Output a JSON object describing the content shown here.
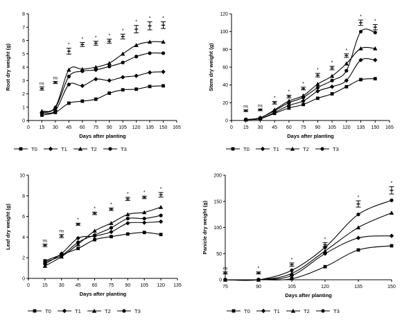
{
  "series_legend": [
    "T0",
    "T1",
    "T2",
    "T3"
  ],
  "series_markers": [
    "square",
    "diamond",
    "triangle",
    "circle"
  ],
  "colors": {
    "line": "#000000",
    "axis": "#000000"
  },
  "chart_data": [
    {
      "type": "line",
      "ylabel": "Root dry weight (g)",
      "xlabel": "Days after planting",
      "x": [
        15,
        30,
        45,
        60,
        75,
        90,
        105,
        120,
        135,
        150
      ],
      "xlim": [
        0,
        165
      ],
      "xticks": [
        "0",
        "15",
        "30",
        "45",
        "60",
        "75",
        "90",
        "105",
        "120",
        "135",
        "150",
        "165"
      ],
      "ylim": [
        0,
        8
      ],
      "yticks": [
        "0",
        "1",
        "2",
        "3",
        "4",
        "5",
        "6",
        "7",
        "8"
      ],
      "series": [
        {
          "name": "T0",
          "values": [
            0.4,
            0.6,
            1.3,
            1.45,
            1.6,
            2.05,
            2.3,
            2.35,
            2.55,
            2.6
          ]
        },
        {
          "name": "T1",
          "values": [
            0.55,
            0.75,
            2.7,
            2.6,
            3.1,
            3.0,
            3.25,
            3.35,
            3.6,
            3.65
          ]
        },
        {
          "name": "T2",
          "values": [
            0.7,
            1.0,
            3.8,
            3.85,
            4.0,
            4.3,
            5.0,
            5.65,
            5.9,
            5.9
          ]
        },
        {
          "name": "T3",
          "values": [
            0.6,
            0.95,
            3.3,
            3.7,
            3.8,
            4.05,
            4.35,
            4.8,
            5.05,
            5.05
          ]
        }
      ],
      "significance": [
        {
          "x": 15,
          "label": "ns",
          "value": 2.4,
          "err": 0.12
        },
        {
          "x": 30,
          "label": "ns",
          "value": 2.85,
          "err": 0.08
        },
        {
          "x": 45,
          "label": "*",
          "value": 5.2,
          "err": 0.22
        },
        {
          "x": 60,
          "label": "*",
          "value": 5.7,
          "err": 0.15
        },
        {
          "x": 75,
          "label": "*",
          "value": 5.8,
          "err": 0.15
        },
        {
          "x": 90,
          "label": "*",
          "value": 5.95,
          "err": 0.15
        },
        {
          "x": 105,
          "label": "*",
          "value": 6.3,
          "err": 0.18
        },
        {
          "x": 120,
          "label": "*",
          "value": 6.85,
          "err": 0.28
        },
        {
          "x": 135,
          "label": "*",
          "value": 7.1,
          "err": 0.3
        },
        {
          "x": 150,
          "label": "*",
          "value": 7.15,
          "err": 0.25
        }
      ]
    },
    {
      "type": "line",
      "ylabel": "Stem dry weight (g)",
      "xlabel": "Days after planting",
      "x": [
        15,
        30,
        45,
        60,
        75,
        90,
        105,
        120,
        135,
        150
      ],
      "xlim": [
        0,
        165
      ],
      "xticks": [
        "0",
        "15",
        "30",
        "45",
        "60",
        "75",
        "90",
        "105",
        "120",
        "135",
        "150",
        "165"
      ],
      "ylim": [
        0,
        120
      ],
      "yticks": [
        "0",
        "20",
        "40",
        "60",
        "80",
        "100",
        "120"
      ],
      "series": [
        {
          "name": "T0",
          "values": [
            1,
            2,
            8,
            14,
            18,
            25,
            30,
            38,
            46,
            47
          ]
        },
        {
          "name": "T1",
          "values": [
            1,
            2,
            9,
            17,
            22,
            33,
            38,
            45,
            68,
            68
          ]
        },
        {
          "name": "T2",
          "values": [
            1,
            3,
            12,
            22,
            28,
            41,
            50,
            64,
            81,
            81
          ]
        },
        {
          "name": "T3",
          "values": [
            1,
            3,
            11,
            20,
            26,
            37,
            45,
            56,
            100,
            99
          ]
        }
      ],
      "significance": [
        {
          "x": 15,
          "label": "ns",
          "value": 11,
          "err": 1
        },
        {
          "x": 30,
          "label": "ns",
          "value": 12,
          "err": 1
        },
        {
          "x": 45,
          "label": "*",
          "value": 20,
          "err": 1.5
        },
        {
          "x": 60,
          "label": "*",
          "value": 27,
          "err": 1.5
        },
        {
          "x": 75,
          "label": "*",
          "value": 36,
          "err": 1.5
        },
        {
          "x": 90,
          "label": "*",
          "value": 51,
          "err": 2
        },
        {
          "x": 105,
          "label": "*",
          "value": 59,
          "err": 2
        },
        {
          "x": 120,
          "label": "*",
          "value": 73,
          "err": 2
        },
        {
          "x": 135,
          "label": "*",
          "value": 110,
          "err": 3
        },
        {
          "x": 150,
          "label": "*",
          "value": 105,
          "err": 3
        }
      ]
    },
    {
      "type": "line",
      "ylabel": "Leaf dry weight (g)",
      "xlabel": "Days after planting",
      "x": [
        15,
        30,
        45,
        60,
        75,
        90,
        105,
        120
      ],
      "xlim": [
        0,
        135
      ],
      "xticks": [
        "0",
        "15",
        "30",
        "45",
        "60",
        "75",
        "90",
        "105",
        "120",
        "135"
      ],
      "ylim": [
        0,
        10
      ],
      "yticks": [
        "0",
        "2",
        "4",
        "6",
        "8",
        "10"
      ],
      "series": [
        {
          "name": "T0",
          "values": [
            1.7,
            2.3,
            2.9,
            3.75,
            4.05,
            4.3,
            4.45,
            4.25
          ]
        },
        {
          "name": "T1",
          "values": [
            1.4,
            2.4,
            3.9,
            4.1,
            4.5,
            5.35,
            5.4,
            5.5
          ]
        },
        {
          "name": "T2",
          "values": [
            1.2,
            2.1,
            3.3,
            4.6,
            5.35,
            6.2,
            6.4,
            6.9
          ]
        },
        {
          "name": "T3",
          "values": [
            1.6,
            2.2,
            3.5,
            4.2,
            4.9,
            5.8,
            5.8,
            6.1
          ]
        }
      ],
      "significance": [
        {
          "x": 15,
          "label": "ns",
          "value": 3.2,
          "err": 0.12
        },
        {
          "x": 30,
          "label": "ns",
          "value": 4.1,
          "err": 0.15
        },
        {
          "x": 45,
          "label": "*",
          "value": 5.25,
          "err": 0.1
        },
        {
          "x": 60,
          "label": "*",
          "value": 6.3,
          "err": 0.12
        },
        {
          "x": 75,
          "label": "*",
          "value": 6.7,
          "err": 0.12
        },
        {
          "x": 90,
          "label": "*",
          "value": 7.7,
          "err": 0.15
        },
        {
          "x": 105,
          "label": "*",
          "value": 7.85,
          "err": 0.12
        },
        {
          "x": 120,
          "label": "*",
          "value": 8.1,
          "err": 0.22
        }
      ]
    },
    {
      "type": "line",
      "ylabel": "Panicle dry weight (g)",
      "xlabel": "Days after planting",
      "x": [
        75,
        90,
        105,
        120,
        135,
        150
      ],
      "xlim": [
        75,
        150
      ],
      "xticks": [
        "75",
        "90",
        "105",
        "120",
        "135",
        "150"
      ],
      "ylim": [
        0,
        200
      ],
      "yticks": [
        "0",
        "50",
        "100",
        "150",
        "200"
      ],
      "series": [
        {
          "name": "T0",
          "values": [
            0,
            0,
            2,
            25,
            57,
            65
          ]
        },
        {
          "name": "T1",
          "values": [
            0,
            0,
            8,
            50,
            80,
            84
          ]
        },
        {
          "name": "T2",
          "values": [
            0,
            0,
            12,
            55,
            100,
            128
          ]
        },
        {
          "name": "T3",
          "values": [
            0,
            0,
            18,
            62,
            125,
            152
          ]
        }
      ],
      "significance": [
        {
          "x": 75,
          "label": "ns",
          "value": 13,
          "err": 2
        },
        {
          "x": 90,
          "label": "*",
          "value": 13,
          "err": 2
        },
        {
          "x": 105,
          "label": "*",
          "value": 29,
          "err": 3
        },
        {
          "x": 120,
          "label": "*",
          "value": 67,
          "err": 4
        },
        {
          "x": 135,
          "label": "*",
          "value": 145,
          "err": 6
        },
        {
          "x": 150,
          "label": "*",
          "value": 171,
          "err": 7
        }
      ]
    }
  ]
}
